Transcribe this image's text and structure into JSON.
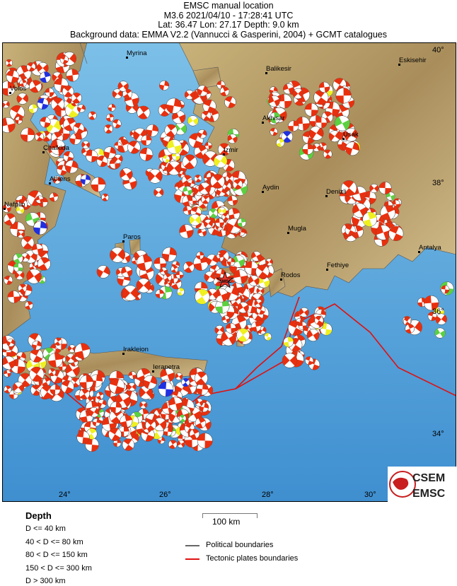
{
  "header": {
    "line1": "EMSC manual location",
    "line2": "M3.6  2021/04/10 - 17:28:41 UTC",
    "line3": "Lat: 36.47    Lon:  27.17     Depth:  9.0 km",
    "line4": "Background data: EMMA V2.2 (Vannucci & Gasperini, 2004) + GCMT catalogues"
  },
  "event": {
    "label": "EMSC",
    "lat": 36.47,
    "lon": 27.17,
    "depth_km": 9.0,
    "magnitude": 3.6,
    "marker_color": "#e8352a"
  },
  "map": {
    "lon_ticks": [
      "24°",
      "26°",
      "28°",
      "30°"
    ],
    "lat_ticks": [
      "40°",
      "38°",
      "36°",
      "34°"
    ],
    "cities": [
      "Myrina",
      "Balikesir",
      "Eskisehir",
      "Volos",
      "Akhisar",
      "Usak",
      "Chalkida",
      "Izmir",
      "Athens",
      "Aydin",
      "Denizli",
      "Nafplio",
      "Mugla",
      "Paros",
      "Antalya",
      "Fethiye",
      "Rodos",
      "Irakleion",
      "Ierapetra"
    ],
    "colors": {
      "sea": "#5aa9dd",
      "land": "#b8a070",
      "mechanism_shallow": "#e8300f",
      "mechanism_intermediate": "#f0f020",
      "mechanism_deep": "#5cd040",
      "mechanism_blue": "#2030e0",
      "plate_boundary": "#e01010",
      "political_boundary": "#666666"
    }
  },
  "logo": {
    "top": "CSEM",
    "bottom": "EMSC"
  },
  "legend": {
    "title": "Depth",
    "depth_items": [
      "D <= 40 km",
      "40 < D <= 80 km",
      "80 < D <= 150 km",
      "150 < D <= 300 km",
      "D > 300 km"
    ],
    "scale_label": "100 km",
    "boundaries": [
      {
        "label": "Political boundaries",
        "color": "#666666"
      },
      {
        "label": "Tectonic plates boundaries",
        "color": "#e01010"
      }
    ]
  }
}
